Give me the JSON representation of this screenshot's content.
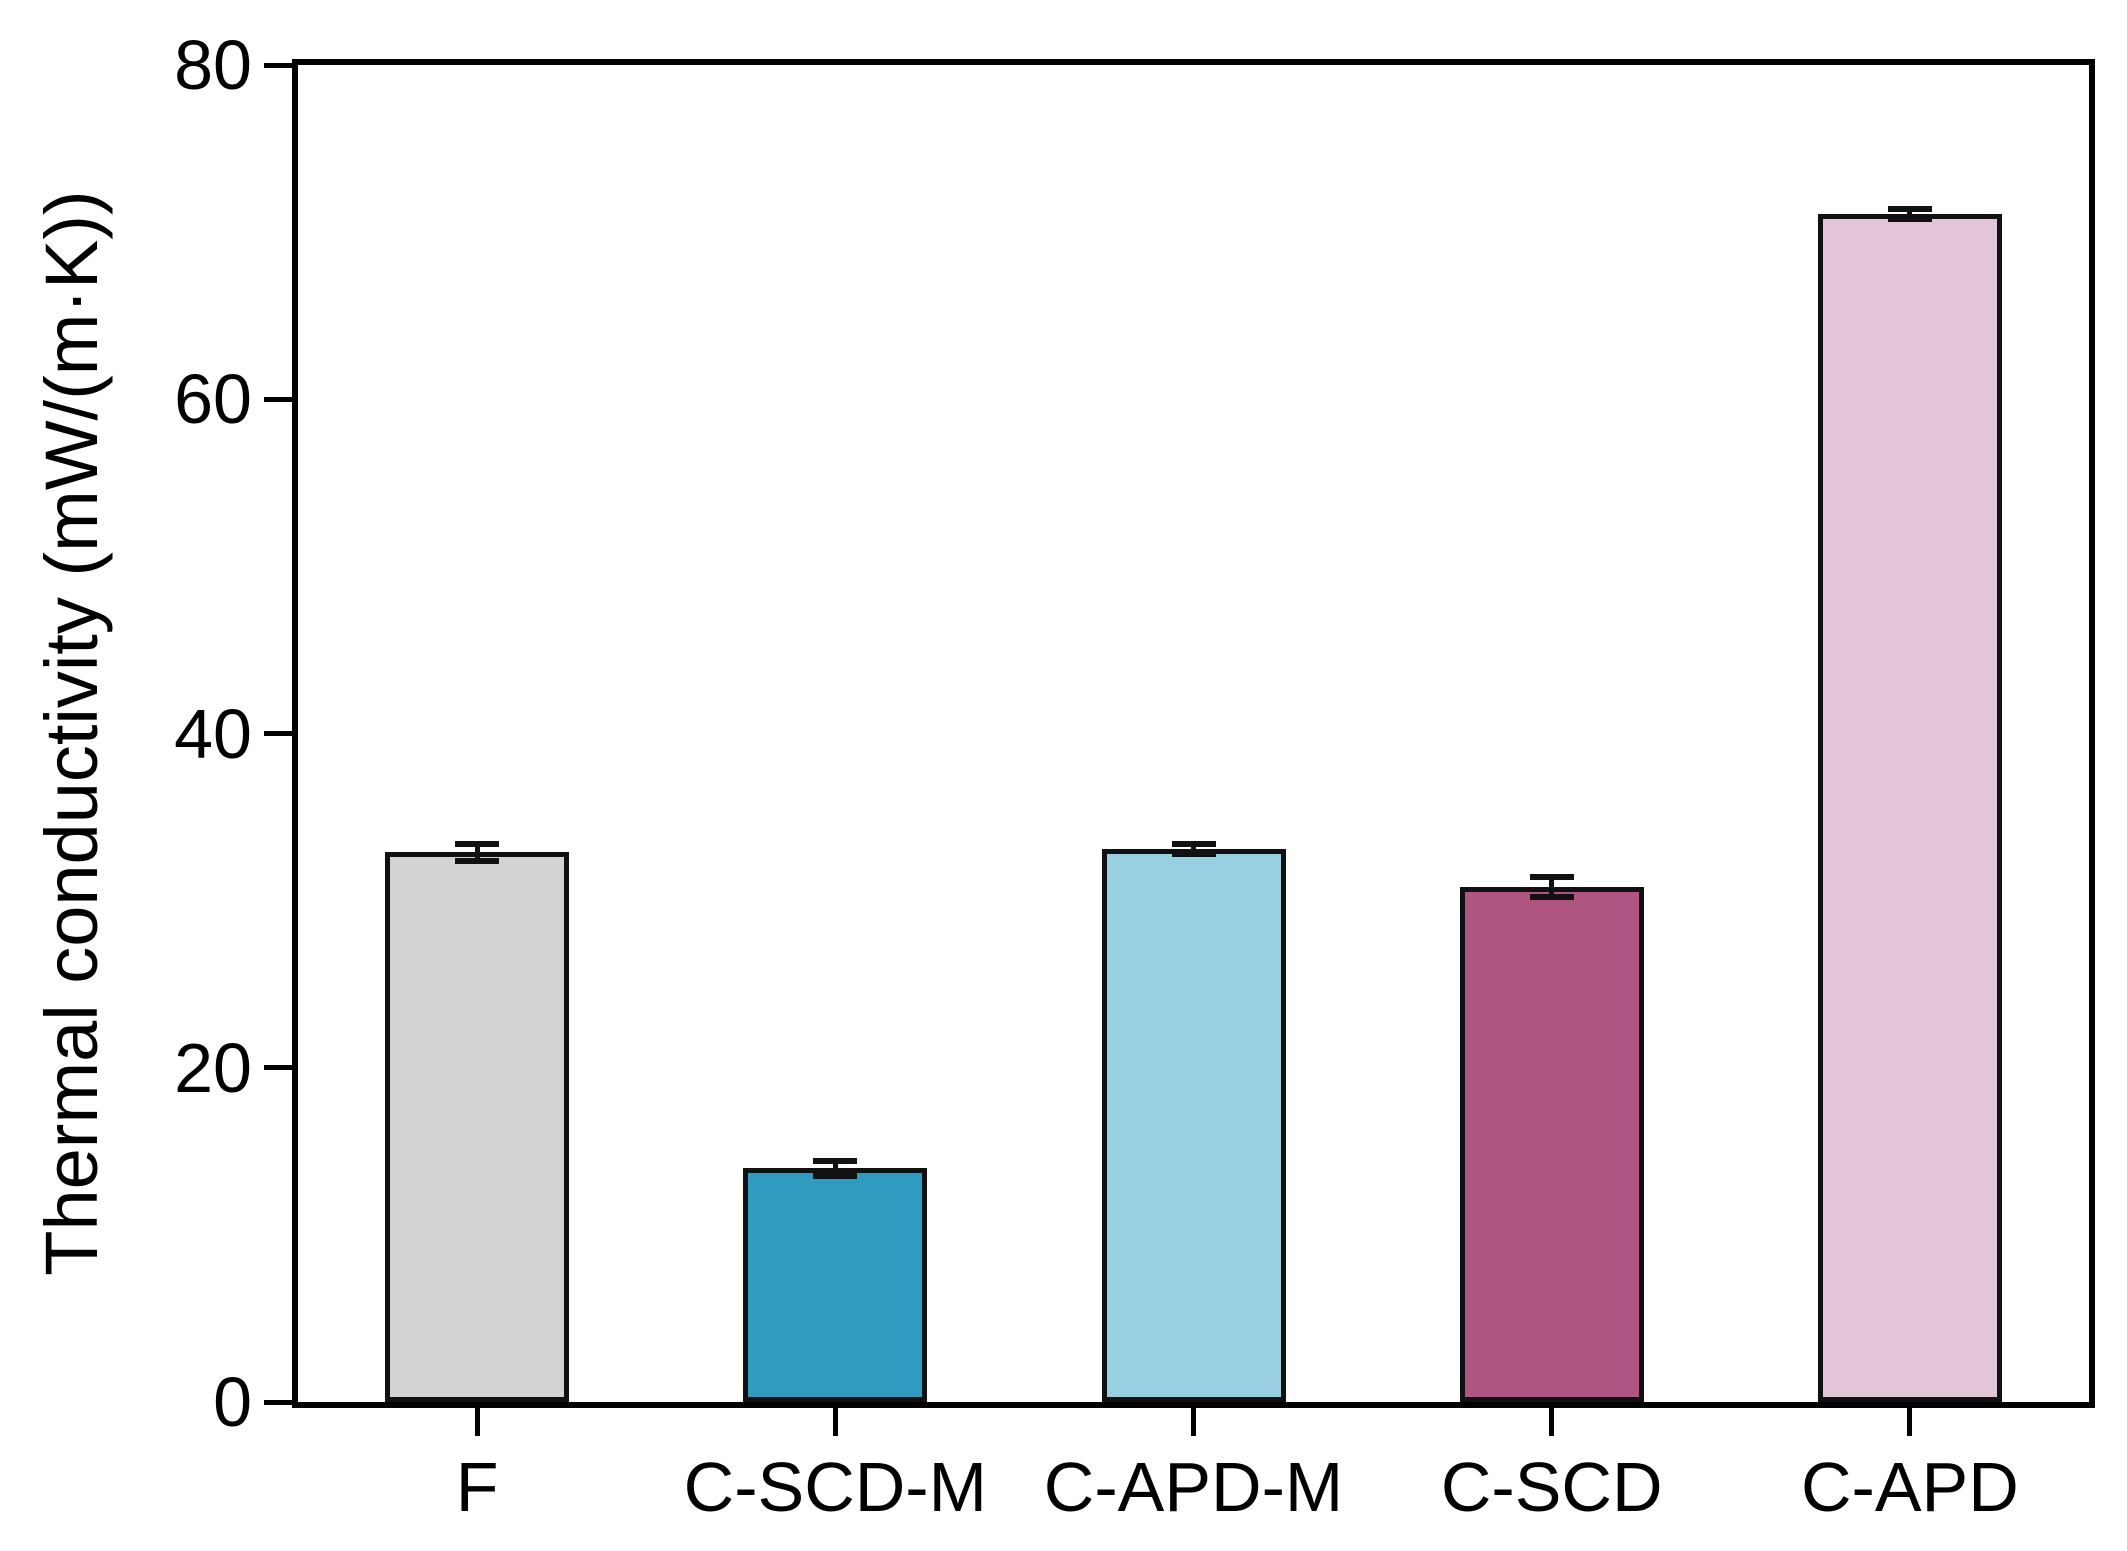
{
  "chart_data": {
    "type": "bar",
    "title": "",
    "xlabel": "",
    "ylabel": "Thermal conductivity (mW/(m·K))",
    "categories": [
      "F",
      "C-SCD-M",
      "C-APD-M",
      "C-SCD",
      "C-APD"
    ],
    "values": [
      32.9,
      14.0,
      33.1,
      30.8,
      71.1
    ],
    "errors": [
      0.5,
      0.45,
      0.3,
      0.6,
      0.3
    ],
    "bar_colors": [
      "#d3d3d3",
      "#2f9bc0",
      "#99cfe2",
      "#af5581",
      "#e2c5d7"
    ],
    "bar_edge_color": "#111111",
    "ylim": [
      0,
      80
    ],
    "yticks": [
      0,
      20,
      40,
      60,
      80
    ],
    "grid": false,
    "legend": null,
    "frame": "full-box",
    "error_bar_color": "#111111"
  }
}
